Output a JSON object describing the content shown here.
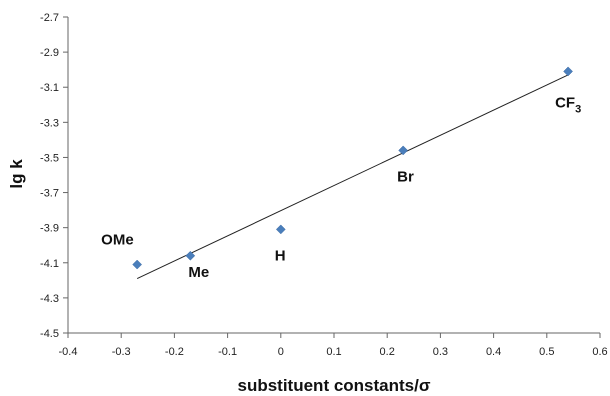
{
  "chart_data": {
    "type": "scatter",
    "xlabel": "substituent constants/σ",
    "ylabel": "lg k",
    "xlim": [
      -0.4,
      0.6
    ],
    "ylim": [
      -4.5,
      -2.7
    ],
    "x_ticks": [
      "-0.4",
      "-0.3",
      "-0.2",
      "-0.1",
      "0",
      "0.1",
      "0.2",
      "0.3",
      "0.4",
      "0.5",
      "0.6"
    ],
    "y_ticks": [
      "-2.7",
      "-2.9",
      "-3.1",
      "-3.3",
      "-3.5",
      "-3.7",
      "-3.9",
      "-4.1",
      "-4.3",
      "-4.5"
    ],
    "grid": false,
    "marker_color": "#4a7ebb",
    "points": [
      {
        "label": "OMe",
        "sub": "",
        "x": -0.27,
        "y": -4.11
      },
      {
        "label": "Me",
        "sub": "",
        "x": -0.17,
        "y": -4.06
      },
      {
        "label": "H",
        "sub": "",
        "x": 0.0,
        "y": -3.91
      },
      {
        "label": "Br",
        "sub": "",
        "x": 0.23,
        "y": -3.46
      },
      {
        "label": "CF",
        "sub": "3",
        "x": 0.54,
        "y": -3.01
      }
    ],
    "trendline": {
      "x": [
        -0.27,
        0.54
      ],
      "y": [
        -4.19,
        -3.03
      ]
    }
  }
}
